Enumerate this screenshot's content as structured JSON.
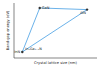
{
  "chart_data": {
    "type": "scatter",
    "x_label": "Crystal lattice size (nm)",
    "y_label": "Band-gap energy (eV)",
    "x": [
      0.31,
      0.88,
      0.1
    ],
    "values": [
      0.91,
      0.88,
      0.11
    ],
    "point_labels": [
      "GaN",
      "AlN",
      "InN"
    ],
    "annotation": "InₓGa₁₋ₓN",
    "color": "#5aa9e6",
    "marker": "circle",
    "line_style": "solid",
    "xlim": [
      0,
      1
    ],
    "ylim": [
      0,
      1
    ],
    "tick_labels": false
  }
}
